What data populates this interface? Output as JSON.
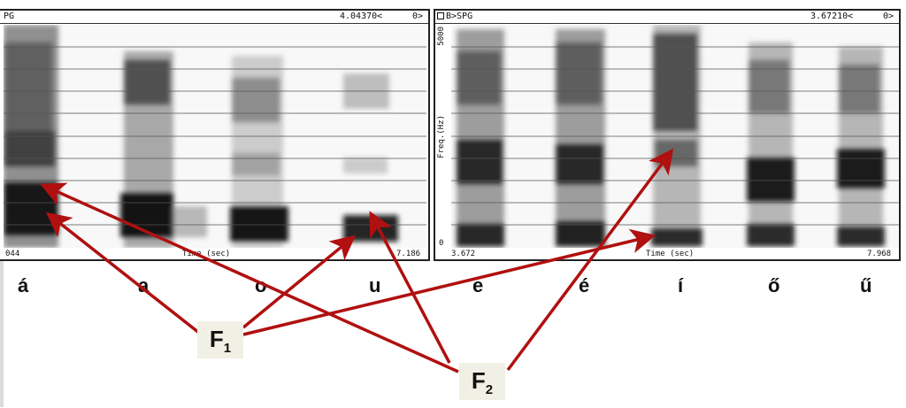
{
  "panel_a": {
    "title_left": "PG",
    "title_right": "4.04370<",
    "title_right2": "0>",
    "x_start": "044",
    "x_label": "Time (sec)",
    "x_end": "7.186"
  },
  "panel_b": {
    "title_left": "B>SPG",
    "title_right": "3.67210<",
    "title_right2": "0>",
    "y_top": "5000",
    "y_label": "Freq.(Hz)",
    "y_bottom": "0",
    "x_start": "3.672",
    "x_label": "Time (sec)",
    "x_end": "7.968"
  },
  "vowels": [
    "á",
    "a",
    "o",
    "u",
    "e",
    "é",
    "í",
    "ő",
    "ű"
  ],
  "formants": {
    "f1": {
      "letter": "F",
      "sub": "1"
    },
    "f2": {
      "letter": "F",
      "sub": "2"
    }
  },
  "colors": {
    "arrow": "#b01010",
    "label_bg": "#f1f0e4"
  }
}
